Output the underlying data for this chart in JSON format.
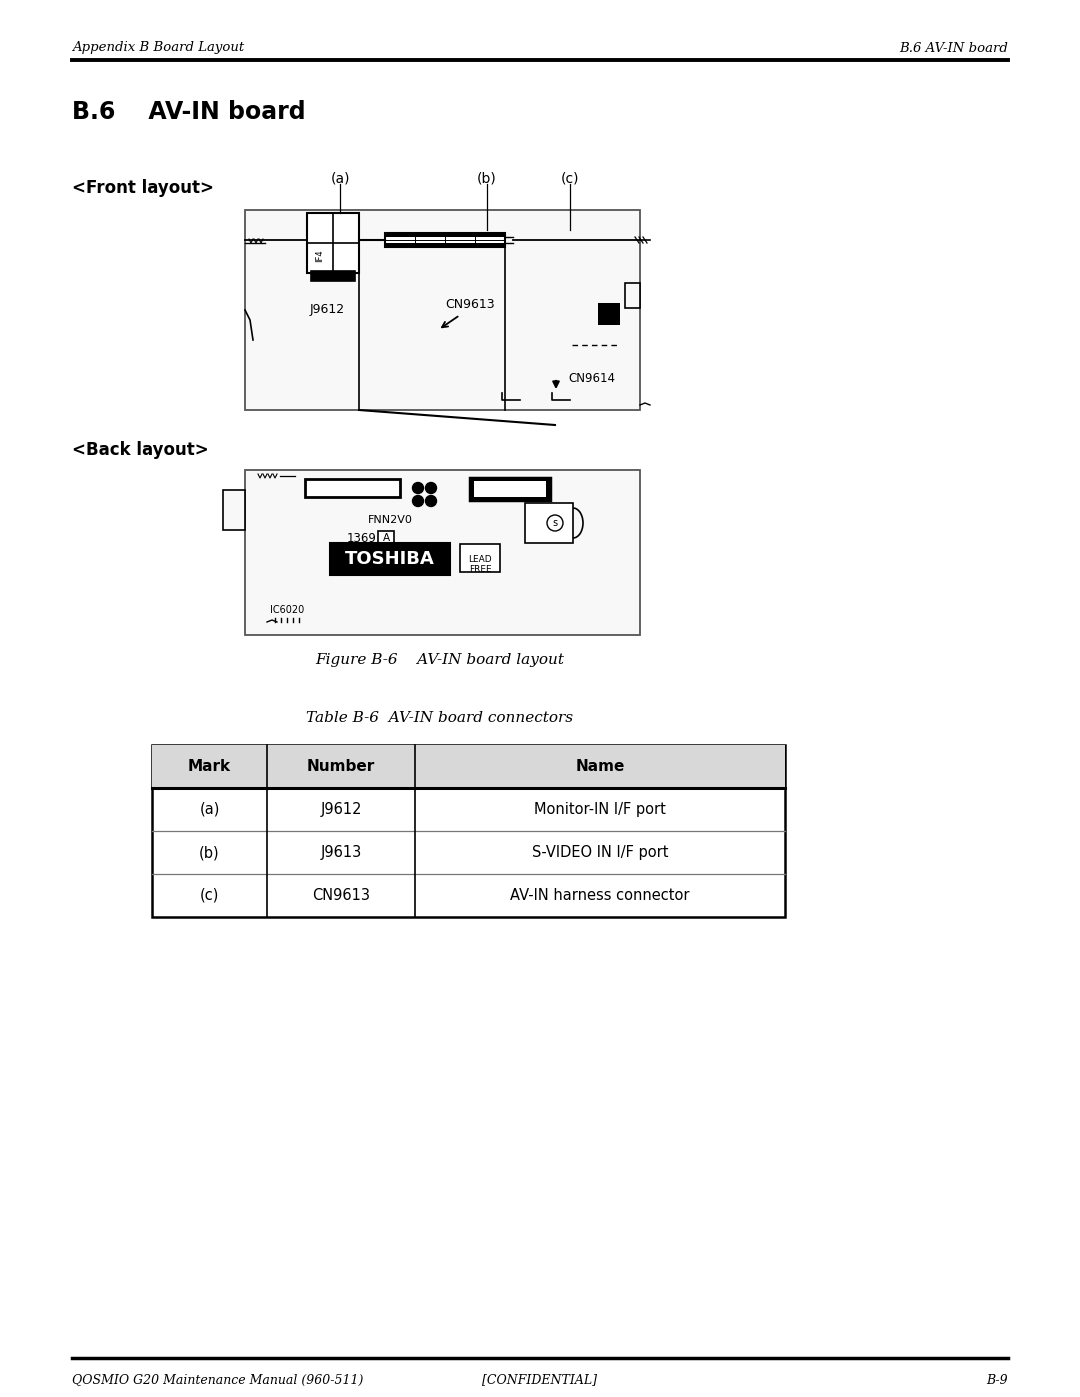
{
  "header_left": "Appendix B Board Layout",
  "header_right": "B.6 AV-IN board",
  "title": "B.6    AV-IN board",
  "front_layout_label": "<Front layout>",
  "back_layout_label": "<Back layout>",
  "figure_caption": "Figure B-6    AV-IN board layout",
  "table_title": "Table B-6  AV-IN board connectors",
  "table_headers": [
    "Mark",
    "Number",
    "Name"
  ],
  "table_rows": [
    [
      "(a)",
      "J9612",
      "Monitor-IN I/F port"
    ],
    [
      "(b)",
      "J9613",
      "S-VIDEO IN I/F port"
    ],
    [
      "(c)",
      "CN9613",
      "AV-IN harness connector"
    ]
  ],
  "footer_left": "QOSMIO G20 Maintenance Manual (960-511)",
  "footer_center": "[CONFIDENTIAL]",
  "footer_right": "B-9",
  "bg_color": "#ffffff",
  "text_color": "#000000"
}
